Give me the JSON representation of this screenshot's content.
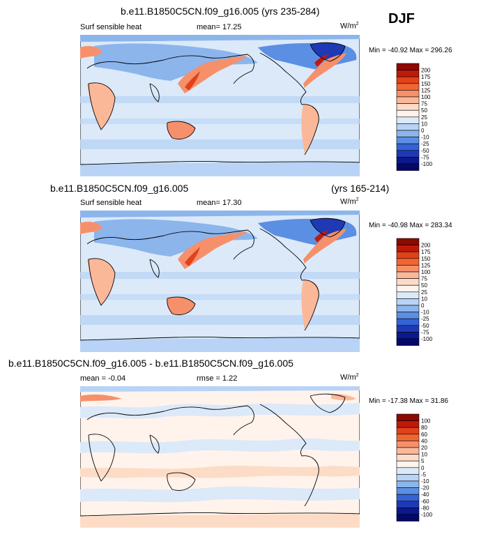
{
  "season": "DJF",
  "panels": [
    {
      "title": "b.e11.B1850C5CN.f09_g16.005 (yrs 235-284)",
      "title_right": "",
      "left_label": "Surf sensible heat",
      "center_label": "mean=  17.25",
      "units": "W/m",
      "units_exp": "2",
      "minmax": "Min = -40.92 Max = 296.26",
      "levels": [
        "200",
        "175",
        "150",
        "125",
        "100",
        "75",
        "50",
        "25",
        "10",
        "0",
        "-10",
        "-25",
        "-50",
        "-75",
        "-100"
      ],
      "colors": [
        "#8c0a00",
        "#c0190b",
        "#e0421a",
        "#ef6631",
        "#f6906b",
        "#fbb899",
        "#fddcc7",
        "#fff3ec",
        "#dbe9f9",
        "#b8d3f5",
        "#8cb5ec",
        "#5b8fe3",
        "#3463d6",
        "#1f39b5",
        "#0a1a8c",
        "#05086b"
      ]
    },
    {
      "title": "b.e11.B1850C5CN.f09_g16.005",
      "title_right": "(yrs 165-214)",
      "left_label": "Surf sensible heat",
      "center_label": "mean=  17.30",
      "units": "W/m",
      "units_exp": "2",
      "minmax": "Min = -40.98 Max = 283.34",
      "levels": [
        "200",
        "175",
        "150",
        "125",
        "100",
        "75",
        "50",
        "25",
        "10",
        "0",
        "-10",
        "-25",
        "-50",
        "-75",
        "-100"
      ],
      "colors": [
        "#8c0a00",
        "#c0190b",
        "#e0421a",
        "#ef6631",
        "#f6906b",
        "#fbb899",
        "#fddcc7",
        "#fff3ec",
        "#dbe9f9",
        "#b8d3f5",
        "#8cb5ec",
        "#5b8fe3",
        "#3463d6",
        "#1f39b5",
        "#0a1a8c",
        "#05086b"
      ]
    },
    {
      "title": "b.e11.B1850C5CN.f09_g16.005 - b.e11.B1850C5CN.f09_g16.005",
      "title_right": "",
      "left_label": "mean =  -0.04",
      "center_label": "rmse =   1.22",
      "units": "W/m",
      "units_exp": "2",
      "minmax": "Min = -17.38 Max = 31.86",
      "levels": [
        "100",
        "80",
        "60",
        "40",
        "20",
        "10",
        "5",
        "0",
        "-5",
        "-10",
        "-20",
        "-40",
        "-60",
        "-80",
        "-100"
      ],
      "colors": [
        "#8c0a00",
        "#c0190b",
        "#e0421a",
        "#ef6631",
        "#f6906b",
        "#fbb899",
        "#fddcc7",
        "#fff3ec",
        "#dbe9f9",
        "#b8d3f5",
        "#8cb5ec",
        "#5b8fe3",
        "#3463d6",
        "#1f39b5",
        "#0a1a8c",
        "#05086b"
      ]
    }
  ]
}
